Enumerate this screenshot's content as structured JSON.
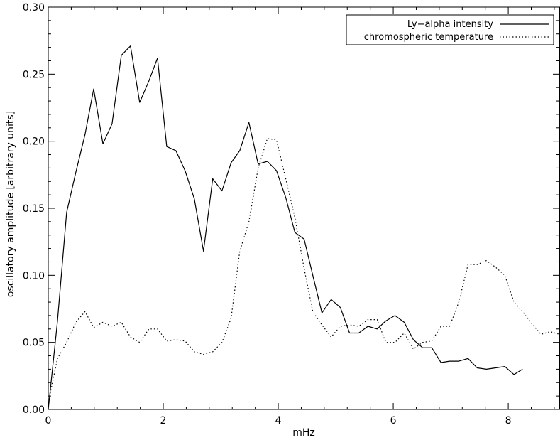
{
  "chart_data": {
    "type": "line",
    "title": "",
    "xlabel": "mHz",
    "ylabel": "oscillatory amplitude [arbitrary units]",
    "xlim": [
      0,
      8.9
    ],
    "ylim": [
      0,
      0.3
    ],
    "x_ticks": [
      0,
      2,
      4,
      6,
      8
    ],
    "x_tick_labels": [
      "0",
      "2",
      "4",
      "6",
      "8"
    ],
    "y_ticks": [
      0,
      0.05,
      0.1,
      0.15,
      0.2,
      0.25,
      0.3
    ],
    "y_tick_labels": [
      "0.00",
      "0.05",
      "0.10",
      "0.15",
      "0.20",
      "0.25",
      "0.30"
    ],
    "grid": false,
    "legend_position": "top-right",
    "series": [
      {
        "name": "Ly−alpha intensity",
        "style": "solid",
        "color": "#000000",
        "x": [
          0.0,
          0.16,
          0.32,
          0.48,
          0.64,
          0.79,
          0.95,
          1.11,
          1.27,
          1.43,
          1.59,
          1.75,
          1.9,
          2.06,
          2.22,
          2.38,
          2.54,
          2.7,
          2.86,
          3.02,
          3.18,
          3.33,
          3.49,
          3.65,
          3.81,
          3.97,
          4.13,
          4.29,
          4.45,
          4.6,
          4.76,
          4.92,
          5.08,
          5.24,
          5.4,
          5.56,
          5.72,
          5.87,
          6.03,
          6.19,
          6.35,
          6.51,
          6.67,
          6.83,
          6.98,
          7.14,
          7.3,
          7.46,
          7.62,
          7.78,
          7.94,
          8.1,
          8.25
        ],
        "values": [
          0.0,
          0.066,
          0.147,
          0.177,
          0.205,
          0.239,
          0.198,
          0.213,
          0.264,
          0.271,
          0.229,
          0.245,
          0.262,
          0.196,
          0.193,
          0.178,
          0.157,
          0.118,
          0.172,
          0.163,
          0.184,
          0.193,
          0.214,
          0.183,
          0.185,
          0.178,
          0.158,
          0.132,
          0.127,
          0.1,
          0.072,
          0.082,
          0.076,
          0.057,
          0.057,
          0.062,
          0.06,
          0.066,
          0.07,
          0.065,
          0.052,
          0.046,
          0.046,
          0.035,
          0.036,
          0.036,
          0.038,
          0.031,
          0.03,
          0.031,
          0.032,
          0.026,
          0.03
        ]
      },
      {
        "name": "chromospheric temperature",
        "style": "dotted",
        "color": "#000000",
        "x": [
          0.0,
          0.16,
          0.32,
          0.48,
          0.64,
          0.79,
          0.95,
          1.11,
          1.27,
          1.43,
          1.59,
          1.75,
          1.9,
          2.06,
          2.22,
          2.38,
          2.54,
          2.7,
          2.86,
          3.02,
          3.18,
          3.33,
          3.49,
          3.65,
          3.81,
          3.97,
          4.13,
          4.29,
          4.45,
          4.6,
          4.76,
          4.92,
          5.08,
          5.24,
          5.4,
          5.56,
          5.72,
          5.87,
          6.03,
          6.19,
          6.35,
          6.51,
          6.67,
          6.83,
          6.98,
          7.14,
          7.3,
          7.46,
          7.62,
          7.78,
          7.94,
          8.1,
          8.25,
          8.41,
          8.57,
          8.73,
          8.89
        ],
        "values": [
          0.005,
          0.038,
          0.05,
          0.065,
          0.073,
          0.061,
          0.065,
          0.062,
          0.065,
          0.054,
          0.05,
          0.06,
          0.06,
          0.051,
          0.052,
          0.051,
          0.043,
          0.041,
          0.043,
          0.05,
          0.068,
          0.118,
          0.14,
          0.18,
          0.202,
          0.201,
          0.172,
          0.143,
          0.105,
          0.073,
          0.063,
          0.054,
          0.062,
          0.063,
          0.062,
          0.067,
          0.067,
          0.05,
          0.05,
          0.057,
          0.045,
          0.05,
          0.051,
          0.062,
          0.062,
          0.08,
          0.108,
          0.108,
          0.111,
          0.106,
          0.1,
          0.08,
          0.073,
          0.064,
          0.056,
          0.058,
          0.056
        ]
      }
    ]
  }
}
